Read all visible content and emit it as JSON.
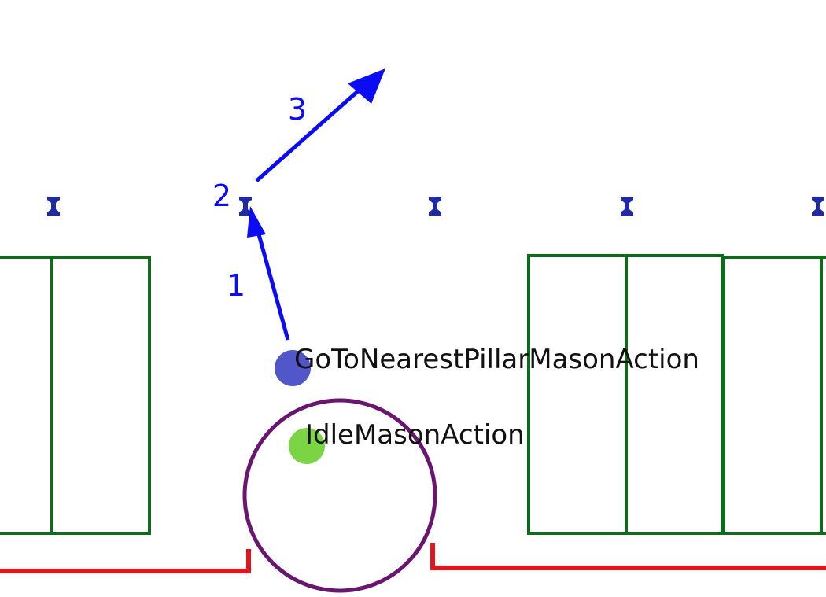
{
  "scene": {
    "agents": [
      {
        "id": "goto",
        "label": "GoToNearestPillarMasonAction",
        "color": "#5157c8"
      },
      {
        "id": "idle",
        "label": "IdleMasonAction",
        "color": "#7bd444"
      }
    ],
    "path_steps": [
      {
        "label": "1"
      },
      {
        "label": "2"
      },
      {
        "label": "3"
      }
    ],
    "colors": {
      "path": "#0b0bf4",
      "wall": "#e8141b",
      "pillar_box": "#0d6b1b",
      "range_circle": "#6a1670",
      "pillar_marker": "#1f2aa3"
    }
  }
}
